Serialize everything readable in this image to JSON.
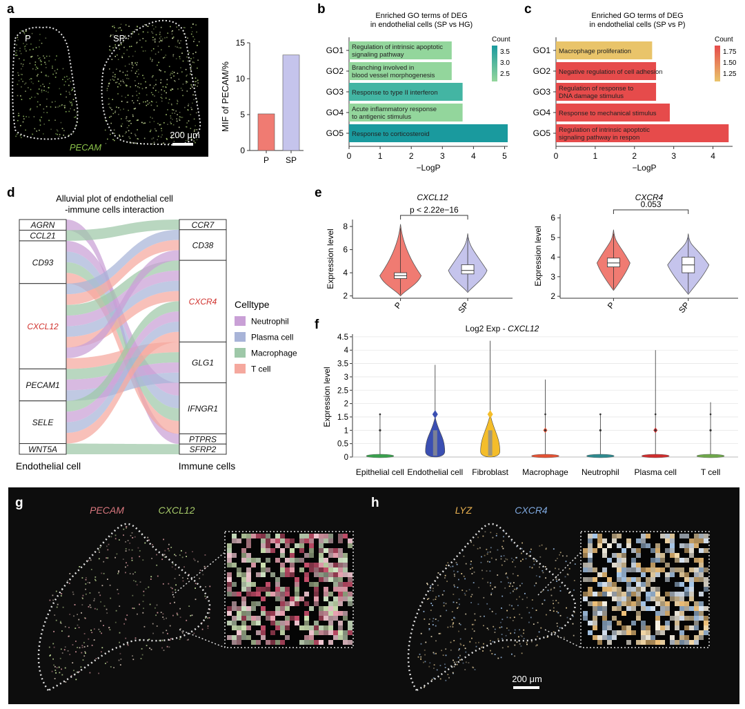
{
  "panels": {
    "a": {
      "letter": "a",
      "micro_left_label": "P",
      "micro_right_label": "SP",
      "gene_label": "PECAM",
      "scale_label": "200 μm"
    },
    "b": {
      "letter": "b"
    },
    "c": {
      "letter": "c"
    },
    "d": {
      "letter": "d"
    },
    "e": {
      "letter": "e"
    },
    "f": {
      "letter": "f"
    },
    "g": {
      "letter": "g",
      "gene1": "PECAM",
      "gene2": "CXCL12"
    },
    "h": {
      "letter": "h",
      "gene1": "LYZ",
      "gene2": "CXCR4",
      "scale_label": "200 μm"
    }
  },
  "chart_data": [
    {
      "id": "a",
      "type": "bar",
      "categories": [
        "P",
        "SP"
      ],
      "values": [
        5.1,
        13.3
      ],
      "colors": [
        "#f07b72",
        "#c5c4ec"
      ],
      "title": "",
      "xlabel": "",
      "ylabel": "MIF of PECAM/%",
      "ylim": [
        0,
        15
      ],
      "yticks": [
        0,
        5,
        10,
        15
      ]
    },
    {
      "id": "b",
      "type": "bar",
      "orientation": "horizontal",
      "title": "Enriched GO terms of DEG\nin endothelial cells (SP vs HG)",
      "categories": [
        "GO1",
        "GO2",
        "GO3",
        "GO4",
        "GO5"
      ],
      "values": [
        3.3,
        3.3,
        3.65,
        3.65,
        5.1
      ],
      "counts": [
        2.3,
        2.3,
        3.4,
        2.3,
        4.0
      ],
      "labels": [
        "Regulation of intrinsic apoptotic\nsignaling pathway",
        "Branching involved in\nblood vessel morphogenesis",
        "Response to type II interferon",
        "Acute inflammatory response\nto antigenic stimulus",
        "Response to corticosteroid"
      ],
      "bar_colors": [
        "#93d69c",
        "#93d69c",
        "#43b5a3",
        "#93d69c",
        "#1a9a9e"
      ],
      "xlabel": "−LogP",
      "xlim": [
        0,
        5.1
      ],
      "xticks": [
        0,
        1,
        2,
        3,
        4,
        5
      ],
      "legend": {
        "title": "Count",
        "ticks": [
          "3.5",
          "3.0",
          "2.5"
        ],
        "colors": [
          "#1a9a9e",
          "#93d69c"
        ],
        "placement": "right"
      }
    },
    {
      "id": "c",
      "type": "bar",
      "orientation": "horizontal",
      "title": "Enriched GO terms of DEG\nin endothelial cells (SP vs P)",
      "categories": [
        "GO1",
        "GO2",
        "GO3",
        "GO4",
        "GO5"
      ],
      "values": [
        2.45,
        2.55,
        2.55,
        2.9,
        4.4
      ],
      "counts": [
        1.0,
        2.0,
        2.0,
        2.0,
        2.0
      ],
      "labels": [
        "Macrophage proliferation",
        "Negative regulation of cell adhesion",
        "Regulation of response to\nDNA damage stimulus",
        "Response to mechanical stimulus",
        "Regulation of intrinsic apoptotic\nsignaling pathway in respon"
      ],
      "bar_colors": [
        "#e9c46a",
        "#e64b4b",
        "#e64b4b",
        "#e64b4b",
        "#e64b4b"
      ],
      "xlabel": "−LogP",
      "xlim": [
        0,
        4.5
      ],
      "xticks": [
        0,
        1,
        2,
        3,
        4
      ],
      "legend": {
        "title": "Count",
        "ticks": [
          "1.75",
          "1.50",
          "1.25"
        ],
        "colors": [
          "#e64b4b",
          "#e9c46a"
        ],
        "placement": "right"
      }
    },
    {
      "id": "d",
      "type": "alluvial",
      "title": "Alluvial plot of endothelial cell\n-immune cells interaction",
      "left_axis_label": "Endothelial cell",
      "right_axis_label": "Immune cells",
      "left_nodes": [
        {
          "name": "AGRN",
          "size": 1,
          "highlight": false
        },
        {
          "name": "CCL21",
          "size": 1,
          "highlight": false
        },
        {
          "name": "CD93",
          "size": 4,
          "highlight": false
        },
        {
          "name": "CXCL12",
          "size": 8,
          "highlight": true
        },
        {
          "name": "PECAM1",
          "size": 3,
          "highlight": false
        },
        {
          "name": "SELE",
          "size": 4,
          "highlight": false
        },
        {
          "name": "WNT5A",
          "size": 1,
          "highlight": false
        }
      ],
      "right_nodes": [
        {
          "name": "CCR7",
          "size": 1,
          "highlight": false
        },
        {
          "name": "CD38",
          "size": 3,
          "highlight": false
        },
        {
          "name": "CXCR4",
          "size": 8,
          "highlight": true
        },
        {
          "name": "GLG1",
          "size": 4,
          "highlight": false
        },
        {
          "name": "IFNGR1",
          "size": 5,
          "highlight": false
        },
        {
          "name": "PTPRS",
          "size": 1,
          "highlight": false
        },
        {
          "name": "SFRP2",
          "size": 1,
          "highlight": false
        }
      ],
      "flows": [
        [
          "AGRN",
          "PTPRS",
          "Neutrophil"
        ],
        [
          "CCL21",
          "CCR7",
          "Macrophage"
        ],
        [
          "CD93",
          "IFNGR1",
          "Neutrophil"
        ],
        [
          "CD93",
          "IFNGR1",
          "Plasma cell"
        ],
        [
          "CD93",
          "IFNGR1",
          "Macrophage"
        ],
        [
          "CD93",
          "IFNGR1",
          "T cell"
        ],
        [
          "CXCL12",
          "CD38",
          "Plasma cell"
        ],
        [
          "CXCL12",
          "CD38",
          "T cell"
        ],
        [
          "CXCL12",
          "CXCR4",
          "Macrophage"
        ],
        [
          "CXCL12",
          "CXCR4",
          "Neutrophil"
        ],
        [
          "CXCL12",
          "CXCR4",
          "Plasma cell"
        ],
        [
          "CXCL12",
          "CXCR4",
          "T cell"
        ],
        [
          "CXCL12",
          "CD38",
          "Neutrophil"
        ],
        [
          "CXCL12",
          "GLG1",
          "T cell"
        ],
        [
          "PECAM1",
          "GLG1",
          "Macrophage"
        ],
        [
          "PECAM1",
          "GLG1",
          "Neutrophil"
        ],
        [
          "PECAM1",
          "GLG1",
          "Plasma cell"
        ],
        [
          "SELE",
          "CXCR4",
          "Macrophage"
        ],
        [
          "SELE",
          "CXCR4",
          "Neutrophil"
        ],
        [
          "SELE",
          "CXCR4",
          "Plasma cell"
        ],
        [
          "SELE",
          "CXCR4",
          "T cell"
        ],
        [
          "WNT5A",
          "SFRP2",
          "Macrophage"
        ]
      ],
      "legend": {
        "title": "Celltype",
        "items": [
          {
            "name": "Neutrophil",
            "color": "#c9a0d6"
          },
          {
            "name": "Plasma cell",
            "color": "#a8b4d8"
          },
          {
            "name": "Macrophage",
            "color": "#9ec8a8"
          },
          {
            "name": "T cell",
            "color": "#f5a89e"
          }
        ],
        "placement": "right"
      }
    },
    {
      "id": "e1",
      "type": "violin",
      "title": "CXCL12",
      "categories": [
        "P",
        "SP"
      ],
      "colors": [
        "#f07b72",
        "#c5c4ec"
      ],
      "medians": [
        3.75,
        4.2
      ],
      "q1": [
        3.5,
        3.9
      ],
      "q3": [
        4.0,
        4.7
      ],
      "min": [
        2.0,
        2.3
      ],
      "max": [
        8.2,
        7.4
      ],
      "pvalue": "p < 2.22e−16",
      "ylabel": "Expression level",
      "ylim": [
        1.8,
        8.6
      ],
      "yticks": [
        2,
        4,
        6,
        8
      ]
    },
    {
      "id": "e2",
      "type": "violin",
      "title": "CXCR4",
      "categories": [
        "P",
        "SP"
      ],
      "colors": [
        "#f07b72",
        "#c5c4ec"
      ],
      "medians": [
        3.7,
        3.6
      ],
      "q1": [
        3.5,
        3.2
      ],
      "q3": [
        3.95,
        4.0
      ],
      "min": [
        2.3,
        2.1
      ],
      "max": [
        5.4,
        5.2
      ],
      "pvalue": "0.053",
      "ylabel": "Expression level",
      "ylim": [
        1.9,
        6.2
      ],
      "yticks": [
        2,
        3,
        4,
        5,
        6
      ]
    },
    {
      "id": "f",
      "type": "violin",
      "title": "Log2 Exp - CXCL12",
      "title_plain": "Log2 Exp - ",
      "title_italic": "CXCL12",
      "categories": [
        "Epithelial cell",
        "Endothelial cell",
        "Fibroblast",
        "Macrophage",
        "Neutrophil",
        "Plasma cell",
        "T cell"
      ],
      "colors": [
        "#3aa14e",
        "#3b4fb2",
        "#f4bd2a",
        "#e35335",
        "#2f8a8f",
        "#cf2e2e",
        "#6fa84b"
      ],
      "max": [
        1.6,
        3.45,
        4.35,
        2.9,
        1.6,
        4.0,
        2.05
      ],
      "upper": [
        0.02,
        1.2,
        1.3,
        0.05,
        0.02,
        0.05,
        0.02
      ],
      "ylabel": "Expression level",
      "ylim": [
        0,
        4.6
      ],
      "yticks": [
        0,
        0.5,
        1,
        1.5,
        2,
        2.5,
        3,
        3.5,
        4,
        4.5
      ]
    }
  ]
}
